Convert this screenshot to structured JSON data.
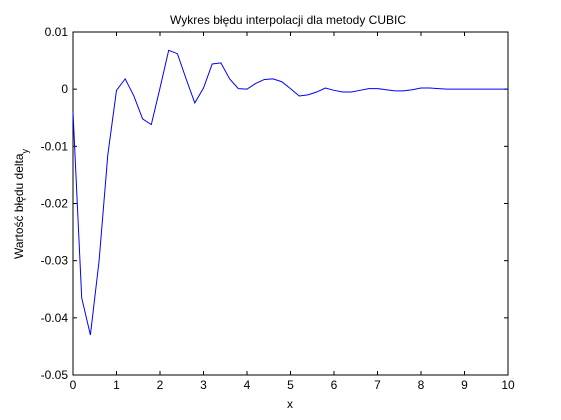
{
  "chart_data": {
    "type": "line",
    "title": "Wykres błędu interpolacji dla metody CUBIC",
    "xlabel": "x",
    "ylabel": "Wartość błędu delta",
    "ylabel_subscript": "y",
    "xlim": [
      0,
      10
    ],
    "ylim": [
      -0.05,
      0.01
    ],
    "xticks": [
      0,
      1,
      2,
      3,
      4,
      5,
      6,
      7,
      8,
      9,
      10
    ],
    "xtick_labels": [
      "0",
      "1",
      "2",
      "3",
      "4",
      "5",
      "6",
      "7",
      "8",
      "9",
      "10"
    ],
    "yticks": [
      -0.05,
      -0.04,
      -0.03,
      -0.02,
      -0.01,
      0,
      0.01
    ],
    "ytick_labels": [
      "-0.05",
      "-0.04",
      "-0.03",
      "-0.02",
      "-0.01",
      "0",
      "0.01"
    ],
    "grid": false,
    "line_color": "#0000ff",
    "series": [
      {
        "x": [
          0,
          0.2,
          0.4,
          0.6,
          0.8,
          1.0,
          1.2,
          1.4,
          1.6,
          1.8,
          2.0,
          2.2,
          2.4,
          2.6,
          2.8,
          3.0,
          3.2,
          3.4,
          3.6,
          3.8,
          4.0,
          4.2,
          4.4,
          4.6,
          4.8,
          5.0,
          5.2,
          5.4,
          5.6,
          5.8,
          6.0,
          6.2,
          6.4,
          6.6,
          6.8,
          7.0,
          7.2,
          7.4,
          7.6,
          7.8,
          8.0,
          8.2,
          8.4,
          8.6,
          8.8,
          9.0,
          9.2,
          9.4,
          9.6,
          9.8,
          10.0
        ],
        "values": [
          -0.004,
          -0.0365,
          -0.043,
          -0.03,
          -0.0115,
          -0.0002,
          0.0018,
          -0.0012,
          -0.0052,
          -0.0062,
          0.0002,
          0.0068,
          0.0062,
          0.0018,
          -0.0024,
          0.0002,
          0.0044,
          0.0046,
          0.0018,
          0.0001,
          0.0,
          0.001,
          0.0017,
          0.0018,
          0.0013,
          0.0001,
          -0.0012,
          -0.001,
          -0.0005,
          0.0002,
          -0.0002,
          -0.0005,
          -0.0005,
          -0.0002,
          0.0001,
          0.0001,
          -0.0001,
          -0.0003,
          -0.0003,
          -0.0001,
          0.0002,
          0.0002,
          0.0001,
          0.0,
          0.0,
          0.0,
          0.0,
          0.0,
          0.0,
          0.0,
          0.0
        ]
      }
    ]
  }
}
